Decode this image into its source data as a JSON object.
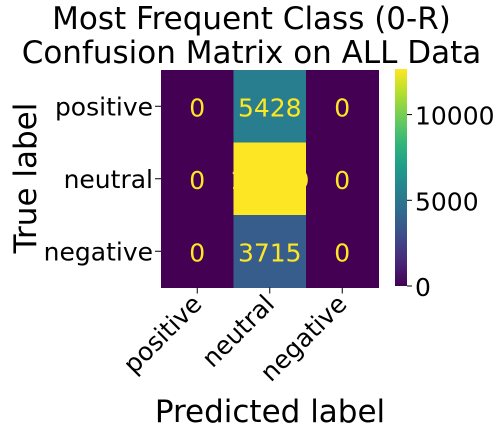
{
  "chart_data": {
    "type": "heatmap",
    "title_line1": "Most Frequent Class (0-R)",
    "title_line2": "Confusion Matrix on ALL Data",
    "xlabel": "Predicted label",
    "ylabel": "True label",
    "x_categories": [
      "positive",
      "neutral",
      "negative"
    ],
    "y_categories": [
      "positive",
      "neutral",
      "negative"
    ],
    "values": [
      [
        0,
        5428,
        0
      ],
      [
        0,
        12659,
        0
      ],
      [
        0,
        3715,
        0
      ]
    ],
    "colormap": "viridis",
    "color_range": [
      0,
      12659
    ],
    "colorbar_ticks": [
      0,
      5000,
      10000
    ],
    "colorbar_tick_labels": [
      "0",
      "5000",
      "10000"
    ],
    "cell_text_color": "#fde725"
  }
}
